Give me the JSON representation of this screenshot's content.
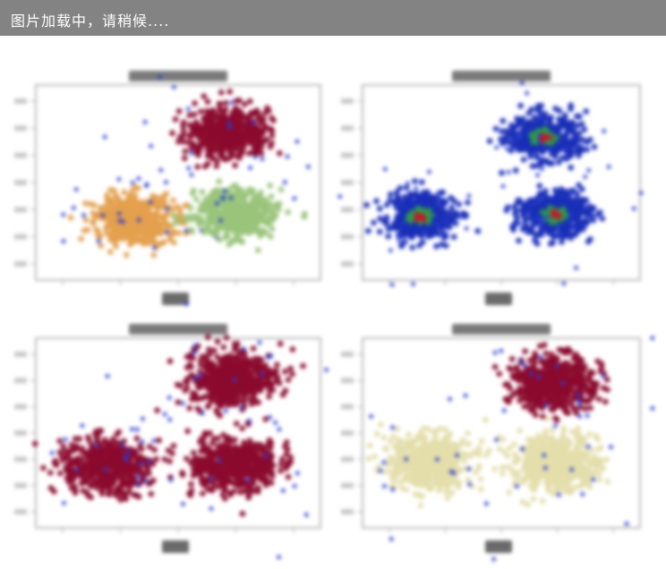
{
  "loading_overlay": {
    "text": "图片加载中，请稍候...."
  },
  "colors": {
    "crimson": "#8b0a2e",
    "orange": "#e3a04c",
    "green": "#99c47a",
    "beige": "#e3deaa",
    "noise": "#2b3ed6",
    "density_low": "#1a2fb8",
    "density_mid": "#2b9a4a",
    "density_high": "#c8172a"
  },
  "chart_data": [
    {
      "type": "scatter",
      "title": "",
      "xlabel": "",
      "ylabel": "",
      "grid": false,
      "clusters": [
        {
          "center": [
            150,
            245
          ],
          "spread": [
            52,
            32
          ],
          "color": "orange"
        },
        {
          "center": [
            255,
            148
          ],
          "spread": [
            55,
            32
          ],
          "color": "crimson"
        },
        {
          "center": [
            262,
            238
          ],
          "spread": [
            52,
            30
          ],
          "color": "green"
        }
      ]
    },
    {
      "type": "heatmap",
      "title": "",
      "xlabel": "",
      "ylabel": "",
      "grid": false,
      "clusters": [
        {
          "center": [
            470,
            242
          ],
          "spread": [
            46,
            32
          ]
        },
        {
          "center": [
            608,
            153
          ],
          "spread": [
            48,
            30
          ]
        },
        {
          "center": [
            620,
            240
          ],
          "spread": [
            46,
            30
          ]
        }
      ]
    },
    {
      "type": "scatter",
      "title": "",
      "xlabel": "",
      "ylabel": "",
      "grid": false,
      "clusters": [
        {
          "center": [
            120,
            520
          ],
          "spread": [
            58,
            38
          ],
          "color": "crimson"
        },
        {
          "center": [
            258,
            425
          ],
          "spread": [
            58,
            38
          ],
          "color": "crimson"
        },
        {
          "center": [
            262,
            520
          ],
          "spread": [
            58,
            36
          ],
          "color": "crimson"
        }
      ]
    },
    {
      "type": "scatter",
      "title": "",
      "xlabel": "",
      "ylabel": "",
      "grid": false,
      "clusters": [
        {
          "center": [
            480,
            515
          ],
          "spread": [
            58,
            36
          ],
          "color": "beige"
        },
        {
          "center": [
            618,
            428
          ],
          "spread": [
            56,
            36
          ],
          "color": "crimson"
        },
        {
          "center": [
            620,
            518
          ],
          "spread": [
            58,
            36
          ],
          "color": "beige"
        }
      ]
    }
  ]
}
